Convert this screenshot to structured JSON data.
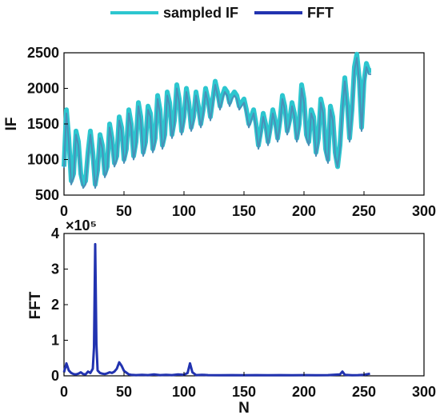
{
  "colors": {
    "sampled": "#2cc6cf",
    "fft": "#2233b0",
    "axis": "#000000"
  },
  "legend": {
    "items": [
      "sampled IF",
      "FFT"
    ],
    "placement": "top-center"
  },
  "chart_data": [
    {
      "type": "line",
      "ylabel": "IF",
      "xlabel": "",
      "xlim": [
        0,
        300
      ],
      "ylim": [
        500,
        2500
      ],
      "xticks": [
        0,
        50,
        100,
        150,
        200,
        250,
        300
      ],
      "yticks": [
        500,
        1000,
        1500,
        2000,
        2500
      ],
      "grid": false,
      "series": [
        {
          "name": "sampled IF",
          "x": [
            0,
            2,
            4,
            6,
            8,
            10,
            12,
            14,
            16,
            18,
            20,
            22,
            24,
            26,
            28,
            30,
            32,
            34,
            36,
            38,
            40,
            42,
            44,
            46,
            48,
            50,
            52,
            54,
            56,
            58,
            60,
            62,
            64,
            66,
            68,
            70,
            72,
            74,
            76,
            78,
            80,
            82,
            84,
            86,
            88,
            90,
            92,
            94,
            96,
            98,
            100,
            102,
            104,
            106,
            108,
            110,
            112,
            114,
            116,
            118,
            120,
            122,
            124,
            126,
            128,
            130,
            132,
            134,
            136,
            138,
            140,
            142,
            144,
            146,
            148,
            150,
            152,
            154,
            156,
            158,
            160,
            162,
            164,
            166,
            168,
            170,
            172,
            174,
            176,
            178,
            180,
            182,
            184,
            186,
            188,
            190,
            192,
            194,
            196,
            198,
            200,
            202,
            204,
            206,
            208,
            210,
            212,
            214,
            216,
            218,
            220,
            222,
            224,
            226,
            228,
            230,
            232,
            234,
            236,
            238,
            240,
            242,
            244,
            246,
            248,
            250,
            252,
            254,
            256
          ],
          "y": [
            900,
            1700,
            1300,
            700,
            800,
            1400,
            1250,
            800,
            650,
            700,
            1100,
            1400,
            1100,
            650,
            850,
            1350,
            1200,
            800,
            900,
            1500,
            1300,
            950,
            1050,
            1600,
            1450,
            1000,
            1150,
            1700,
            1500,
            1050,
            1250,
            1800,
            1600,
            1100,
            1250,
            1750,
            1650,
            1150,
            1300,
            1900,
            1700,
            1200,
            1350,
            1950,
            1800,
            1350,
            1550,
            2050,
            1850,
            1400,
            1600,
            2000,
            1800,
            1450,
            1600,
            1950,
            1750,
            1500,
            1700,
            2000,
            1850,
            1600,
            1850,
            2100,
            1950,
            1750,
            1900,
            2000,
            1950,
            1800,
            1900,
            1950,
            1900,
            1750,
            1800,
            1850,
            1700,
            1500,
            1600,
            1700,
            1500,
            1200,
            1400,
            1650,
            1500,
            1250,
            1450,
            1700,
            1550,
            1300,
            1550,
            1900,
            1750,
            1400,
            1550,
            1800,
            1650,
            1300,
            1500,
            2050,
            1850,
            1350,
            1250,
            1700,
            1600,
            1100,
            1300,
            1850,
            1700,
            1150,
            1000,
            1750,
            1600,
            1100,
            900,
            1200,
            1750,
            2150,
            1800,
            1300,
            1700,
            2300,
            2480,
            2150,
            1450,
            2100,
            2350,
            2250,
            2250
          ]
        },
        {
          "name": "",
          "x": [
            0,
            2,
            4,
            6,
            8,
            10,
            12,
            14,
            16,
            18,
            20,
            22,
            24,
            26,
            28,
            30,
            32,
            34,
            36,
            38,
            40,
            42,
            44,
            46,
            48,
            50,
            52,
            54,
            56,
            58,
            60,
            62,
            64,
            66,
            68,
            70,
            72,
            74,
            76,
            78,
            80,
            82,
            84,
            86,
            88,
            90,
            92,
            94,
            96,
            98,
            100,
            102,
            104,
            106,
            108,
            110,
            112,
            114,
            116,
            118,
            120,
            122,
            124,
            126,
            128,
            130,
            132,
            134,
            136,
            138,
            140,
            142,
            144,
            146,
            148,
            150,
            152,
            154,
            156,
            158,
            160,
            162,
            164,
            166,
            168,
            170,
            172,
            174,
            176,
            178,
            180,
            182,
            184,
            186,
            188,
            190,
            192,
            194,
            196,
            198,
            200,
            202,
            204,
            206,
            208,
            210,
            212,
            214,
            216,
            218,
            220,
            222,
            224,
            226,
            228,
            230,
            232,
            234,
            236,
            238,
            240,
            242,
            244,
            246,
            248,
            250,
            252,
            254,
            256
          ],
          "y": [
            880,
            1650,
            1250,
            650,
            750,
            1350,
            1200,
            750,
            600,
            650,
            1050,
            1350,
            1050,
            600,
            800,
            1300,
            1150,
            750,
            850,
            1450,
            1250,
            900,
            1000,
            1550,
            1400,
            950,
            1100,
            1650,
            1450,
            1000,
            1200,
            1750,
            1550,
            1050,
            1200,
            1700,
            1600,
            1100,
            1250,
            1850,
            1650,
            1150,
            1300,
            1900,
            1750,
            1300,
            1500,
            2000,
            1800,
            1350,
            1550,
            1950,
            1750,
            1400,
            1550,
            1900,
            1700,
            1450,
            1650,
            1950,
            1800,
            1550,
            1800,
            2050,
            1900,
            1700,
            1850,
            1950,
            1900,
            1750,
            1850,
            1900,
            1850,
            1700,
            1750,
            1800,
            1650,
            1450,
            1550,
            1650,
            1450,
            1150,
            1350,
            1600,
            1450,
            1200,
            1400,
            1650,
            1500,
            1250,
            1500,
            1850,
            1700,
            1350,
            1500,
            1750,
            1600,
            1250,
            1450,
            2000,
            1800,
            1300,
            1200,
            1650,
            1550,
            1050,
            1250,
            1800,
            1650,
            1100,
            950,
            1700,
            1550,
            1050,
            900,
            1150,
            1700,
            2100,
            1750,
            1250,
            1650,
            2250,
            2430,
            2100,
            1400,
            2050,
            2300,
            2200,
            2200
          ]
        }
      ]
    },
    {
      "type": "line",
      "ylabel": "FFT",
      "xlabel": "N",
      "exponent_label": "×10⁵",
      "xlim": [
        0,
        300
      ],
      "ylim": [
        0,
        400000
      ],
      "xticks": [
        0,
        50,
        100,
        150,
        200,
        250,
        300
      ],
      "ytick_labels": [
        "0",
        "1",
        "2",
        "3",
        "4"
      ],
      "grid": false,
      "series": [
        {
          "name": "FFT",
          "x": [
            0,
            2,
            4,
            6,
            8,
            10,
            12,
            14,
            16,
            18,
            20,
            22,
            24,
            25,
            26,
            27,
            28,
            30,
            32,
            34,
            36,
            38,
            40,
            42,
            44,
            46,
            48,
            50,
            52,
            54,
            56,
            60,
            65,
            70,
            75,
            80,
            85,
            90,
            95,
            100,
            103,
            105,
            107,
            110,
            115,
            120,
            130,
            140,
            150,
            160,
            170,
            180,
            190,
            200,
            210,
            220,
            230,
            232,
            234,
            240,
            245,
            250,
            255
          ],
          "y": [
            10000,
            35000,
            15000,
            8000,
            5000,
            4000,
            6000,
            10000,
            5000,
            4000,
            12000,
            8000,
            20000,
            80000,
            370000,
            90000,
            15000,
            8000,
            6000,
            5000,
            7000,
            10000,
            8000,
            12000,
            20000,
            38000,
            28000,
            14000,
            9000,
            4000,
            3000,
            2000,
            3000,
            2000,
            4000,
            2000,
            3000,
            2000,
            4000,
            3000,
            8000,
            35000,
            10000,
            2000,
            3000,
            2000,
            1500,
            2000,
            1500,
            2000,
            1500,
            2000,
            1500,
            2000,
            1500,
            2000,
            4000,
            12000,
            3000,
            1500,
            2000,
            3000,
            6000
          ]
        }
      ]
    }
  ]
}
